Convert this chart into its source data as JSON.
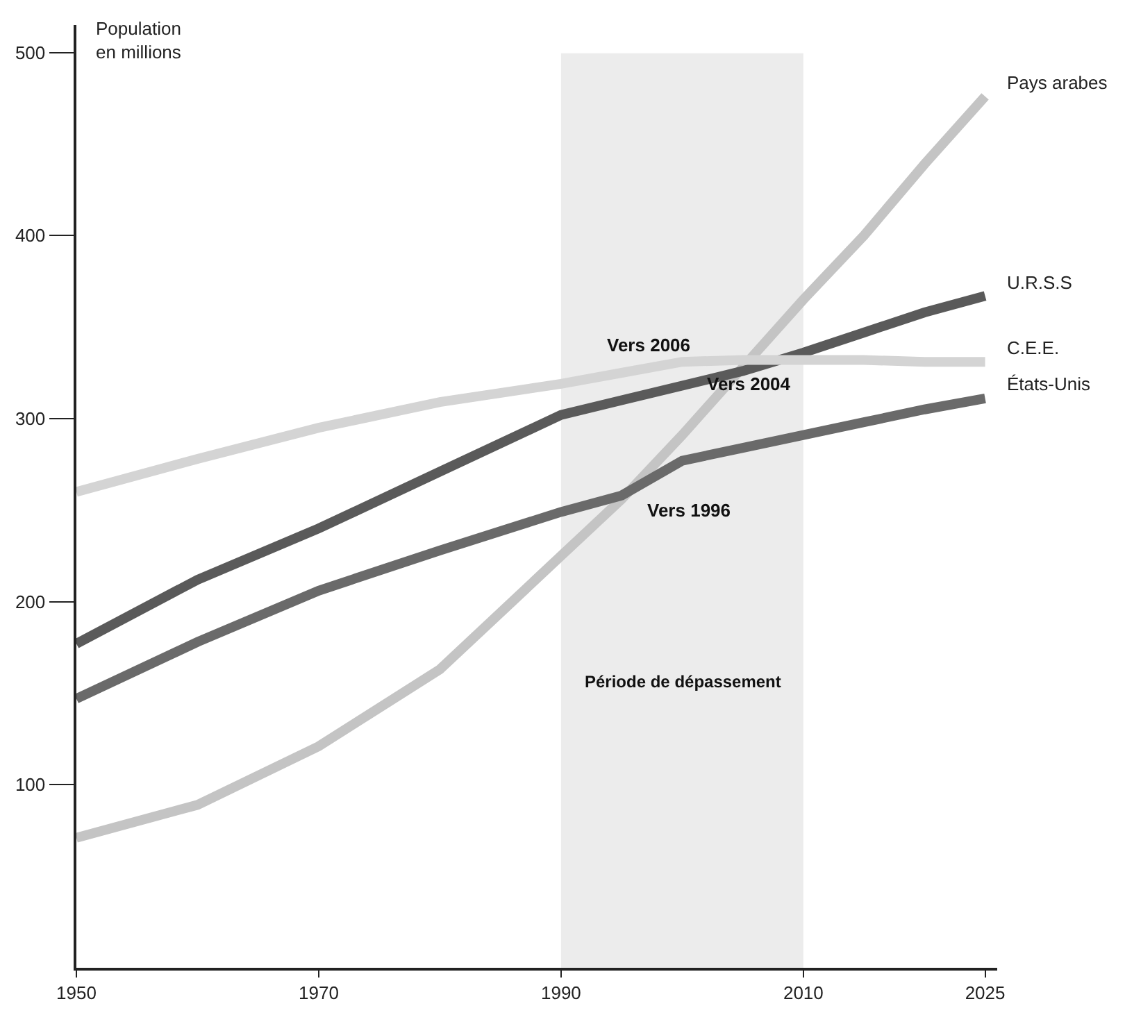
{
  "chart_data": {
    "type": "line",
    "ylabel": "Population\nen millions",
    "x": [
      1950,
      1960,
      1970,
      1980,
      1990,
      1995,
      2000,
      2005,
      2010,
      2015,
      2020,
      2025
    ],
    "series": [
      {
        "name": "Pays arabes",
        "color": "#c4c4c4",
        "values": [
          71,
          89,
          121,
          163,
          225,
          256,
          291,
          328,
          365,
          400,
          439,
          476
        ]
      },
      {
        "name": "U.R.S.S",
        "color": "#5a5a5a",
        "values": [
          177,
          212,
          240,
          271,
          302,
          310,
          318,
          326,
          336,
          347,
          358,
          367
        ]
      },
      {
        "name": "C.E.E.",
        "color": "#d4d4d4",
        "values": [
          260,
          278,
          295,
          309,
          319,
          325,
          331,
          332,
          332,
          332,
          331,
          331
        ]
      },
      {
        "name": "États-Unis",
        "color": "#6a6a6a",
        "values": [
          147,
          178,
          206,
          228,
          249,
          258,
          277,
          284,
          291,
          298,
          305,
          311
        ]
      }
    ],
    "xlim": [
      1950,
      2026
    ],
    "ylim": [
      0,
      515
    ],
    "xticks": [
      1950,
      1970,
      1990,
      2010,
      2025
    ],
    "yticks": [
      100,
      200,
      300,
      400,
      500
    ],
    "bands": [
      {
        "axis": "x",
        "from": 1990,
        "to": 2010,
        "label": "Période de dépassement",
        "color": "#ececec"
      }
    ],
    "annotations": [
      "Vers 2006",
      "Vers 2004",
      "Vers 1996"
    ],
    "grid": false,
    "legend": false,
    "marker": "none",
    "line_style": "solid"
  }
}
